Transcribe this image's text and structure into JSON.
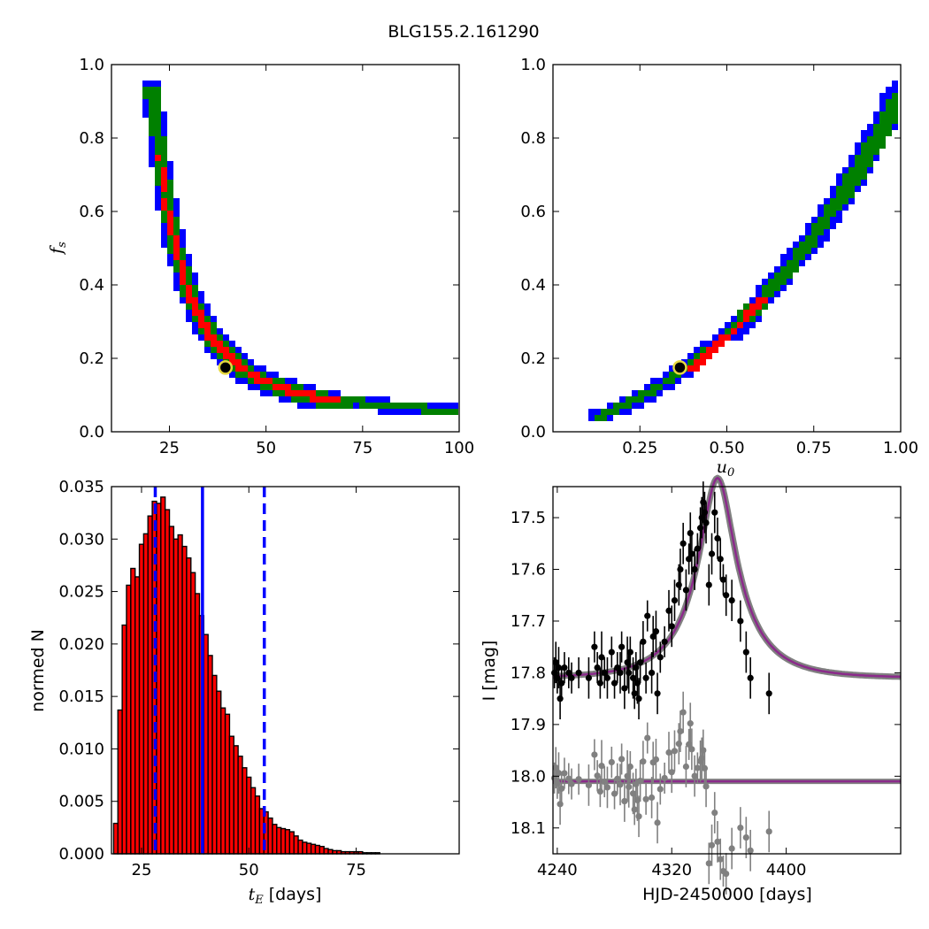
{
  "figure": {
    "title": "BLG155.2.161290"
  },
  "chart_data": [
    {
      "id": "p1",
      "type": "heatmap",
      "xlim": [
        10,
        100
      ],
      "ylim": [
        0,
        1.0
      ],
      "xticks": [
        "25",
        "50",
        "75",
        "100"
      ],
      "xtick_values": [
        25,
        50,
        75,
        100
      ],
      "yticks": [
        "0.0",
        "0.2",
        "0.4",
        "0.6",
        "0.8",
        "1.0"
      ],
      "ytick_values": [
        0,
        0.2,
        0.4,
        0.6,
        0.8,
        1.0
      ],
      "xlabel": "",
      "ylabel": {
        "main": "f",
        "sub": "s"
      },
      "levels": {
        "outer": "#0000ff",
        "middle": "#008000",
        "inner": "#ff0000",
        "core": "#000000"
      },
      "best_fit": {
        "x": 39.5,
        "y": 0.175
      }
    },
    {
      "id": "p2",
      "type": "heatmap",
      "xlim": [
        0,
        1.0
      ],
      "ylim": [
        0,
        1.0
      ],
      "xticks": [
        "0.25",
        "0.50",
        "0.75",
        "1.00"
      ],
      "xtick_values": [
        0.25,
        0.5,
        0.75,
        1.0
      ],
      "yticks": [
        "0.0",
        "0.2",
        "0.4",
        "0.6",
        "0.8",
        "1.0"
      ],
      "ytick_values": [
        0,
        0.2,
        0.4,
        0.6,
        0.8,
        1.0
      ],
      "xlabel": {
        "main": "u",
        "sub": "0"
      },
      "ylabel": "",
      "levels": {
        "outer": "#0000ff",
        "middle": "#008000",
        "inner": "#ff0000",
        "core": "#000000"
      },
      "best_fit": {
        "x": 0.365,
        "y": 0.175
      }
    },
    {
      "id": "p3",
      "type": "bar",
      "xlim": [
        18,
        99
      ],
      "ylim": [
        0,
        0.035
      ],
      "xticks": [
        "25",
        "50",
        "75"
      ],
      "xtick_values": [
        25,
        50,
        75
      ],
      "yticks": [
        "0.000",
        "0.005",
        "0.010",
        "0.015",
        "0.020",
        "0.025",
        "0.030",
        "0.035"
      ],
      "ytick_values": [
        0,
        0.005,
        0.01,
        0.015,
        0.02,
        0.025,
        0.03,
        0.035
      ],
      "xlabel": {
        "main": "t",
        "sub": "E",
        "rest": " [days]"
      },
      "ylabel": "normed N",
      "bar_start": 18.5,
      "bar_width": 1.0,
      "values": [
        0.0029,
        0.0137,
        0.0218,
        0.0256,
        0.0272,
        0.0264,
        0.0295,
        0.0305,
        0.0322,
        0.0336,
        0.0334,
        0.034,
        0.0328,
        0.0312,
        0.03,
        0.0304,
        0.0293,
        0.0282,
        0.0268,
        0.0248,
        0.0227,
        0.0209,
        0.0189,
        0.017,
        0.0155,
        0.0139,
        0.0133,
        0.0112,
        0.0103,
        0.0093,
        0.0082,
        0.0073,
        0.0063,
        0.0055,
        0.0043,
        0.004,
        0.0034,
        0.0028,
        0.0025,
        0.0024,
        0.0023,
        0.0021,
        0.0017,
        0.0013,
        0.0011,
        0.001,
        0.0009,
        0.0008,
        0.0007,
        0.0005,
        0.0004,
        0.0003,
        0.0003,
        0.0002,
        0.0002,
        0.0002,
        0.0002,
        0.0002,
        0.0001,
        0.0001,
        0.0001,
        0.0001
      ],
      "bar_color": "#ff0000",
      "median": 39.2,
      "lower": 28.2,
      "upper": 53.6,
      "line_color": "#0000ff"
    },
    {
      "id": "p4",
      "type": "scatter",
      "xlim": [
        4237,
        4480
      ],
      "ylim": [
        18.15,
        17.44
      ],
      "xticks": [
        "4240",
        "4320",
        "4400"
      ],
      "xtick_values": [
        4240,
        4320,
        4400
      ],
      "yticks": [
        "17.5",
        "17.6",
        "17.7",
        "17.8",
        "17.9",
        "18.0",
        "18.1"
      ],
      "ytick_values": [
        17.5,
        17.6,
        17.7,
        17.8,
        17.9,
        18.0,
        18.1
      ],
      "xlabel": "HJD-2450000 [days]",
      "ylabel": "I [mag]",
      "model": {
        "t0": 4352,
        "tE": 39,
        "u0": 0.3,
        "fs": 0.175,
        "base": 17.81,
        "color": "#8b2a8b"
      },
      "residual_baseline": 18.01,
      "data_color": "#000000",
      "residual_color": "#808080",
      "points": [
        [
          4238,
          17.8,
          0.03
        ],
        [
          4239,
          17.78,
          0.04
        ],
        [
          4240,
          17.81,
          0.03
        ],
        [
          4241,
          17.79,
          0.04
        ],
        [
          4242,
          17.85,
          0.04
        ],
        [
          4243,
          17.82,
          0.03
        ],
        [
          4245,
          17.79,
          0.03
        ],
        [
          4248,
          17.8,
          0.03
        ],
        [
          4250,
          17.81,
          0.03
        ],
        [
          4255,
          17.8,
          0.03
        ],
        [
          4262,
          17.81,
          0.04
        ],
        [
          4266,
          17.75,
          0.03
        ],
        [
          4268,
          17.79,
          0.03
        ],
        [
          4270,
          17.82,
          0.03
        ],
        [
          4271,
          17.77,
          0.05
        ],
        [
          4273,
          17.8,
          0.03
        ],
        [
          4275,
          17.81,
          0.04
        ],
        [
          4278,
          17.76,
          0.03
        ],
        [
          4280,
          17.82,
          0.03
        ],
        [
          4282,
          17.79,
          0.03
        ],
        [
          4284,
          17.8,
          0.04
        ],
        [
          4285,
          17.75,
          0.03
        ],
        [
          4287,
          17.83,
          0.04
        ],
        [
          4289,
          17.78,
          0.05
        ],
        [
          4290,
          17.8,
          0.04
        ],
        [
          4291,
          17.76,
          0.03
        ],
        [
          4293,
          17.81,
          0.04
        ],
        [
          4294,
          17.84,
          0.03
        ],
        [
          4295,
          17.79,
          0.03
        ],
        [
          4296,
          17.82,
          0.04
        ],
        [
          4297,
          17.85,
          0.04
        ],
        [
          4298,
          17.78,
          0.04
        ],
        [
          4300,
          17.74,
          0.04
        ],
        [
          4302,
          17.81,
          0.03
        ],
        [
          4303,
          17.69,
          0.03
        ],
        [
          4306,
          17.8,
          0.04
        ],
        [
          4307,
          17.73,
          0.04
        ],
        [
          4309,
          17.72,
          0.04
        ],
        [
          4310,
          17.84,
          0.04
        ],
        [
          4312,
          17.77,
          0.03
        ],
        [
          4315,
          17.74,
          0.03
        ],
        [
          4318,
          17.68,
          0.04
        ],
        [
          4320,
          17.71,
          0.04
        ],
        [
          4322,
          17.66,
          0.04
        ],
        [
          4325,
          17.63,
          0.04
        ],
        [
          4326,
          17.6,
          0.04
        ],
        [
          4328,
          17.55,
          0.04
        ],
        [
          4330,
          17.64,
          0.04
        ],
        [
          4332,
          17.58,
          0.03
        ],
        [
          4333,
          17.53,
          0.04
        ],
        [
          4334,
          17.57,
          0.04
        ],
        [
          4336,
          17.6,
          0.04
        ],
        [
          4338,
          17.56,
          0.03
        ],
        [
          4340,
          17.52,
          0.04
        ],
        [
          4341,
          17.5,
          0.04
        ],
        [
          4342,
          17.47,
          0.04
        ],
        [
          4343,
          17.49,
          0.04
        ],
        [
          4344,
          17.51,
          0.04
        ],
        [
          4346,
          17.63,
          0.04
        ],
        [
          4348,
          17.57,
          0.04
        ],
        [
          4350,
          17.49,
          0.04
        ],
        [
          4352,
          17.54,
          0.04
        ],
        [
          4354,
          17.58,
          0.04
        ],
        [
          4356,
          17.62,
          0.03
        ],
        [
          4358,
          17.65,
          0.04
        ],
        [
          4362,
          17.66,
          0.04
        ],
        [
          4368,
          17.7,
          0.04
        ],
        [
          4372,
          17.76,
          0.04
        ],
        [
          4375,
          17.81,
          0.04
        ],
        [
          4388,
          17.84,
          0.04
        ]
      ]
    }
  ]
}
